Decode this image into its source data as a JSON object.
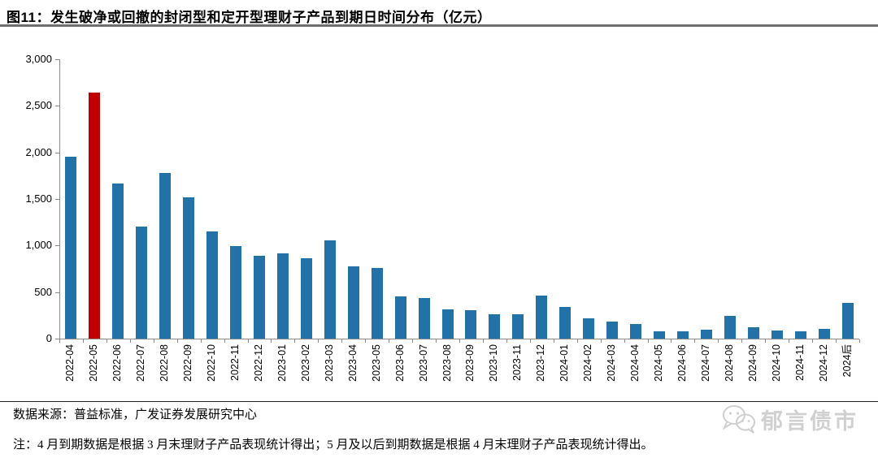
{
  "title": "图11：发生破净或回撤的封闭型和定开型理财子产品到期日时间分布（亿元）",
  "source": "数据来源：普益标准，广发证券发展研究中心",
  "note": "注：4 月到期数据是根据 3 月末理财子产品表现统计得出；5 月及以后到期数据是根据 4 月末理财子产品表现统计得出。",
  "watermark": {
    "icon": "wechat-icon",
    "text": "郁言债市"
  },
  "colors": {
    "bar": "#2272A8",
    "highlight": "#C00000",
    "axis": "#8C8C8C",
    "title_rule": "#6E6E6E",
    "watermark": "#CFCFCF"
  },
  "chart_data": {
    "type": "bar",
    "title": "发生破净或回撤的封闭型和定开型理财子产品到期日时间分布",
    "unit": "亿元",
    "categories": [
      "2022-04",
      "2022-05",
      "2022-06",
      "2022-07",
      "2022-08",
      "2022-09",
      "2022-10",
      "2022-11",
      "2022-12",
      "2023-01",
      "2023-02",
      "2023-03",
      "2023-04",
      "2023-05",
      "2023-06",
      "2023-07",
      "2023-08",
      "2023-09",
      "2023-10",
      "2023-11",
      "2023-12",
      "2024-01",
      "2024-02",
      "2024-03",
      "2024-04",
      "2024-05",
      "2024-06",
      "2024-07",
      "2024-08",
      "2024-09",
      "2024-10",
      "2024-11",
      "2024-12",
      "2024后"
    ],
    "values": [
      1950,
      2640,
      1670,
      1205,
      1780,
      1515,
      1155,
      990,
      890,
      915,
      860,
      1055,
      780,
      755,
      455,
      435,
      310,
      305,
      265,
      265,
      460,
      340,
      220,
      185,
      160,
      80,
      75,
      100,
      245,
      120,
      90,
      80,
      105,
      380
    ],
    "highlight": {
      "category": "2022-05",
      "index": 1
    },
    "ylim": [
      0,
      3000
    ],
    "yticks": [
      0,
      500,
      1000,
      1500,
      2000,
      2500,
      3000
    ],
    "ytick_labels": [
      "0",
      "500",
      "1,000",
      "1,500",
      "2,000",
      "2,500",
      "3,000"
    ],
    "xlabel_rotation": -90,
    "grid": false,
    "legend": false
  }
}
